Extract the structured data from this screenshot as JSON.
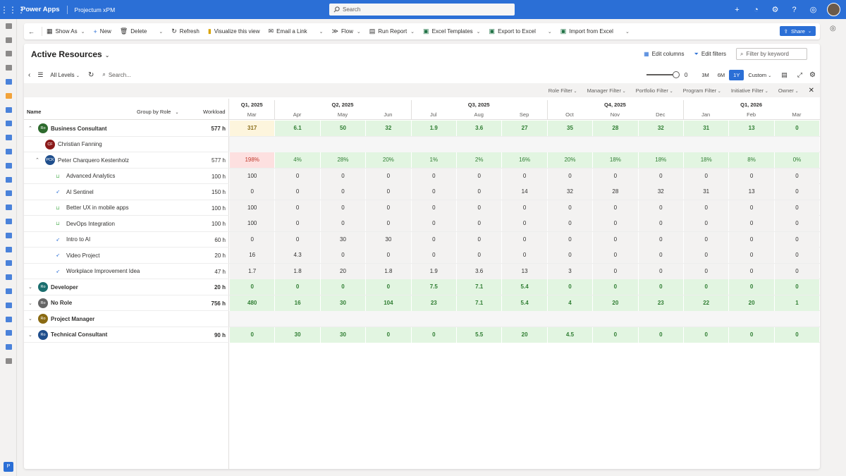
{
  "topbar": {
    "app_name": "Power Apps",
    "env_name": "Projectum xPM",
    "search_placeholder": "Search"
  },
  "cmdbar": {
    "items": [
      {
        "label": "Show As",
        "icon": "table-icon",
        "chevron": true
      },
      {
        "label": "New",
        "icon": "plus-icon",
        "chevron": false
      },
      {
        "label": "Delete",
        "icon": "trash-icon",
        "chevron": false
      },
      {
        "label": "",
        "icon": "",
        "chevron": true
      },
      {
        "label": "Refresh",
        "icon": "refresh-icon",
        "chevron": false
      },
      {
        "label": "Visualize this view",
        "icon": "chart-icon",
        "chevron": false
      },
      {
        "label": "Email a Link",
        "icon": "mail-icon",
        "chevron": false
      },
      {
        "label": "",
        "icon": "",
        "chevron": true
      },
      {
        "label": "Flow",
        "icon": "flow-icon",
        "chevron": true
      },
      {
        "label": "Run Report",
        "icon": "report-icon",
        "chevron": true
      },
      {
        "label": "Excel Templates",
        "icon": "excel-icon",
        "chevron": true
      },
      {
        "label": "Export to Excel",
        "icon": "excel-icon",
        "chevron": false
      },
      {
        "label": "",
        "icon": "",
        "chevron": true
      },
      {
        "label": "Import from Excel",
        "icon": "excel-icon",
        "chevron": false
      },
      {
        "label": "",
        "icon": "",
        "chevron": true
      }
    ],
    "share_label": "Share"
  },
  "view": {
    "title": "Active Resources",
    "edit_columns": "Edit columns",
    "edit_filters": "Edit filters",
    "filter_placeholder": "Filter by keyword"
  },
  "toolbar": {
    "levels": "All Levels",
    "search_placeholder": "Search...",
    "slider_value": "0",
    "zoom": [
      "3M",
      "6M",
      "1Y"
    ],
    "zoom_active": "1Y",
    "custom": "Custom"
  },
  "filters": [
    "Role Filter",
    "Manager Filter",
    "Portfolio Filter",
    "Program Filter",
    "Initiative Filter",
    "Owner"
  ],
  "grid": {
    "col_name": "Name",
    "col_group": "Group by Role",
    "col_workload": "Workload",
    "quarters": [
      "Q1, 2025",
      "Q2, 2025",
      "Q3, 2025",
      "Q4, 2025",
      "Q1, 2026"
    ],
    "months": [
      "Mar",
      "Apr",
      "May",
      "Jun",
      "Jul",
      "Aug",
      "Sep",
      "Oct",
      "Nov",
      "Dec",
      "Jan",
      "Feb",
      "Mar"
    ],
    "rows": [
      {
        "type": "group",
        "name": "Business Consultant",
        "avatar": "Ro",
        "avatar_color": "#2e6b2e",
        "workload": "577 h",
        "expand": "up",
        "values": [
          "317",
          "6.1",
          "50",
          "32",
          "1.9",
          "3.6",
          "27",
          "35",
          "28",
          "32",
          "31",
          "13",
          "0"
        ],
        "tone": [
          "yellow",
          "g",
          "g",
          "g",
          "g",
          "g",
          "g",
          "g",
          "g",
          "g",
          "g",
          "g",
          "g"
        ]
      },
      {
        "type": "person",
        "name": "Christian Fanning",
        "avatar": "CF",
        "avatar_color": "#8b1a1a",
        "workload": "",
        "expand": "",
        "values": [],
        "tone": []
      },
      {
        "type": "person",
        "name": "Peter Charquero Kestenholz",
        "avatar": "PCK",
        "avatar_color": "#1f4e8c",
        "workload": "577 h",
        "expand": "up",
        "values": [
          "198%",
          "4%",
          "28%",
          "20%",
          "1%",
          "2%",
          "16%",
          "20%",
          "18%",
          "18%",
          "18%",
          "8%",
          "0%"
        ],
        "tone": [
          "red",
          "g",
          "g",
          "g",
          "g",
          "g",
          "g",
          "g",
          "g",
          "g",
          "g",
          "g",
          "g"
        ]
      },
      {
        "type": "project",
        "name": "Advanced Analytics",
        "icon": "basket-icon",
        "workload": "100 h",
        "values": [
          "100",
          "0",
          "0",
          "0",
          "0",
          "0",
          "0",
          "0",
          "0",
          "0",
          "0",
          "0",
          "0"
        ]
      },
      {
        "type": "project",
        "name": "AI Sentinel",
        "icon": "rocket-icon",
        "workload": "150 h",
        "values": [
          "0",
          "0",
          "0",
          "0",
          "0",
          "0",
          "14",
          "32",
          "28",
          "32",
          "31",
          "13",
          "0"
        ]
      },
      {
        "type": "project",
        "name": "Better UX in mobile apps",
        "icon": "basket-icon",
        "workload": "100 h",
        "values": [
          "100",
          "0",
          "0",
          "0",
          "0",
          "0",
          "0",
          "0",
          "0",
          "0",
          "0",
          "0",
          "0"
        ]
      },
      {
        "type": "project",
        "name": "DevOps Integration",
        "icon": "basket-icon",
        "workload": "100 h",
        "values": [
          "100",
          "0",
          "0",
          "0",
          "0",
          "0",
          "0",
          "0",
          "0",
          "0",
          "0",
          "0",
          "0"
        ]
      },
      {
        "type": "project",
        "name": "Intro to AI",
        "icon": "rocket-icon",
        "workload": "60 h",
        "values": [
          "0",
          "0",
          "30",
          "30",
          "0",
          "0",
          "0",
          "0",
          "0",
          "0",
          "0",
          "0",
          "0"
        ]
      },
      {
        "type": "project",
        "name": "Video Project",
        "icon": "rocket-icon",
        "workload": "20 h",
        "values": [
          "16",
          "4.3",
          "0",
          "0",
          "0",
          "0",
          "0",
          "0",
          "0",
          "0",
          "0",
          "0",
          "0"
        ]
      },
      {
        "type": "project",
        "name": "Workplace Improvement Idea",
        "icon": "rocket-icon",
        "workload": "47 h",
        "values": [
          "1.7",
          "1.8",
          "20",
          "1.8",
          "1.9",
          "3.6",
          "13",
          "3",
          "0",
          "0",
          "0",
          "0",
          "0"
        ]
      },
      {
        "type": "group",
        "name": "Developer",
        "avatar": "Ro",
        "avatar_color": "#1b6e6e",
        "workload": "20 h",
        "expand": "down",
        "values": [
          "0",
          "0",
          "0",
          "0",
          "7.5",
          "7.1",
          "5.4",
          "0",
          "0",
          "0",
          "0",
          "0",
          "0"
        ],
        "tone": [
          "g",
          "g",
          "g",
          "g",
          "g",
          "g",
          "g",
          "g",
          "g",
          "g",
          "g",
          "g",
          "g"
        ]
      },
      {
        "type": "group",
        "name": "No Role",
        "avatar": "Ro",
        "avatar_color": "#666666",
        "workload": "756 h",
        "expand": "down",
        "values": [
          "480",
          "16",
          "30",
          "104",
          "23",
          "7.1",
          "5.4",
          "4",
          "20",
          "23",
          "22",
          "20",
          "1"
        ],
        "tone": [
          "g",
          "g",
          "g",
          "g",
          "g",
          "g",
          "g",
          "g",
          "g",
          "g",
          "g",
          "g",
          "g"
        ]
      },
      {
        "type": "group",
        "name": "Project Manager",
        "avatar": "Ro",
        "avatar_color": "#8a6a12",
        "workload": "",
        "expand": "down",
        "values": [],
        "tone": []
      },
      {
        "type": "group",
        "name": "Technical Consultant",
        "avatar": "Ro",
        "avatar_color": "#1f4e8c",
        "workload": "90 h",
        "expand": "down",
        "values": [
          "0",
          "30",
          "30",
          "0",
          "0",
          "5.5",
          "20",
          "4.5",
          "0",
          "0",
          "0",
          "0",
          "0"
        ],
        "tone": [
          "g",
          "g",
          "g",
          "g",
          "g",
          "g",
          "g",
          "g",
          "g",
          "g",
          "g",
          "g",
          "g"
        ]
      }
    ]
  },
  "colors": {
    "accent": "#2b6fd6",
    "heat_green": "#e2f5e1",
    "heat_green_text": "#2f7d32",
    "heat_yellow": "#fdf5dd",
    "heat_red": "#fde0e0",
    "heat_red_text": "#c0392b"
  }
}
